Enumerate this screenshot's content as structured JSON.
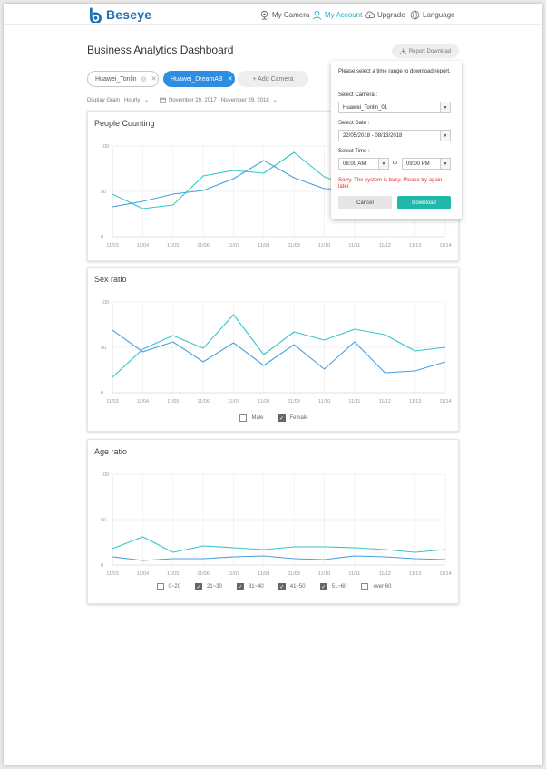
{
  "brand": {
    "name": "Beseye",
    "color": "#1e6fb5"
  },
  "nav": {
    "my_camera": "My Camera",
    "my_account": "My Account",
    "upgrade": "Upgrade",
    "language": "Language"
  },
  "page": {
    "title": "Business Analytics Dashboard",
    "report_download": "Report Download"
  },
  "cameras": {
    "chips": [
      "Huawei_Tonlin",
      "Huawei_DreamAB"
    ],
    "add_label": "+ Add Camera"
  },
  "filters": {
    "display_grain": "Display Grain : Hourly",
    "date_range": "November 29, 2017 - November 29, 2018"
  },
  "popover": {
    "message": "Please select a time range to download report.",
    "camera_label": "Select Camera :",
    "camera_value": "Huawei_Tonlin_01",
    "date_label": "Select Date :",
    "date_value": "22/05/2018 - 08/13/2018",
    "time_label": "Select Time :",
    "time_from": "08:00 AM",
    "to_label": "to",
    "time_to": "09:00 PM",
    "error": "Sorry. The system is busy. Please try again later.",
    "cancel": "Cancel",
    "download": "Download"
  },
  "colors": {
    "teal": "#33c6c6",
    "blue": "#4a9fe0",
    "accent": "#1fb8ab",
    "error": "#e0302a"
  },
  "chart_data": [
    {
      "type": "line",
      "title": "People Counting",
      "categories": [
        "11/03",
        "11/04",
        "11/05",
        "11/06",
        "11/07",
        "11/08",
        "11/09",
        "11/10",
        "11/11",
        "11/12",
        "11/13",
        "11/14"
      ],
      "ylim": [
        0,
        100
      ],
      "yticks": [
        "0",
        "50",
        "100"
      ],
      "series": [
        {
          "color": "#33c6c6",
          "values": [
            47,
            31,
            35,
            67,
            73,
            70,
            93,
            66,
            55,
            null,
            null,
            null
          ]
        },
        {
          "color": "#4a9fe0",
          "values": [
            33,
            39,
            47,
            51,
            64,
            84,
            65,
            53,
            52,
            null,
            null,
            null
          ]
        }
      ]
    },
    {
      "type": "line",
      "title": "Sex ratio",
      "categories": [
        "11/03",
        "11/04",
        "11/05",
        "11/06",
        "11/07",
        "11/08",
        "11/09",
        "11/10",
        "11/11",
        "11/12",
        "11/13",
        "11/14"
      ],
      "ylim": [
        0,
        100
      ],
      "yticks": [
        "0",
        "50",
        "100"
      ],
      "legend": [
        {
          "label": "Male",
          "checked": false
        },
        {
          "label": "Female",
          "checked": true
        }
      ],
      "series": [
        {
          "color": "#33c6c6",
          "values": [
            17,
            48,
            63,
            49,
            86,
            42,
            67,
            58,
            70,
            64,
            46,
            50
          ]
        },
        {
          "color": "#4a9fe0",
          "values": [
            69,
            45,
            56,
            34,
            55,
            30,
            53,
            26,
            56,
            22,
            24,
            34
          ]
        }
      ]
    },
    {
      "type": "line",
      "title": "Age ratio",
      "categories": [
        "11/03",
        "11/04",
        "11/05",
        "11/06",
        "11/07",
        "11/08",
        "11/09",
        "11/10",
        "11/11",
        "11/12",
        "11/13",
        "11/14"
      ],
      "ylim": [
        0,
        100
      ],
      "yticks": [
        "0",
        "50",
        "100"
      ],
      "legend": [
        {
          "label": "0~20",
          "checked": false
        },
        {
          "label": "21~30",
          "checked": true
        },
        {
          "label": "31~40",
          "checked": true
        },
        {
          "label": "41~50",
          "checked": true
        },
        {
          "label": "51~60",
          "checked": true
        },
        {
          "label": "over 60",
          "checked": false
        }
      ],
      "series": [
        {
          "color": "#33c6c6",
          "values": [
            18,
            31,
            14,
            21,
            19,
            17,
            20,
            20,
            19,
            17,
            14,
            17
          ]
        },
        {
          "color": "#4a9fe0",
          "values": [
            9,
            5,
            7,
            7,
            9,
            10,
            7,
            6,
            10,
            9,
            7,
            6
          ]
        }
      ]
    }
  ]
}
